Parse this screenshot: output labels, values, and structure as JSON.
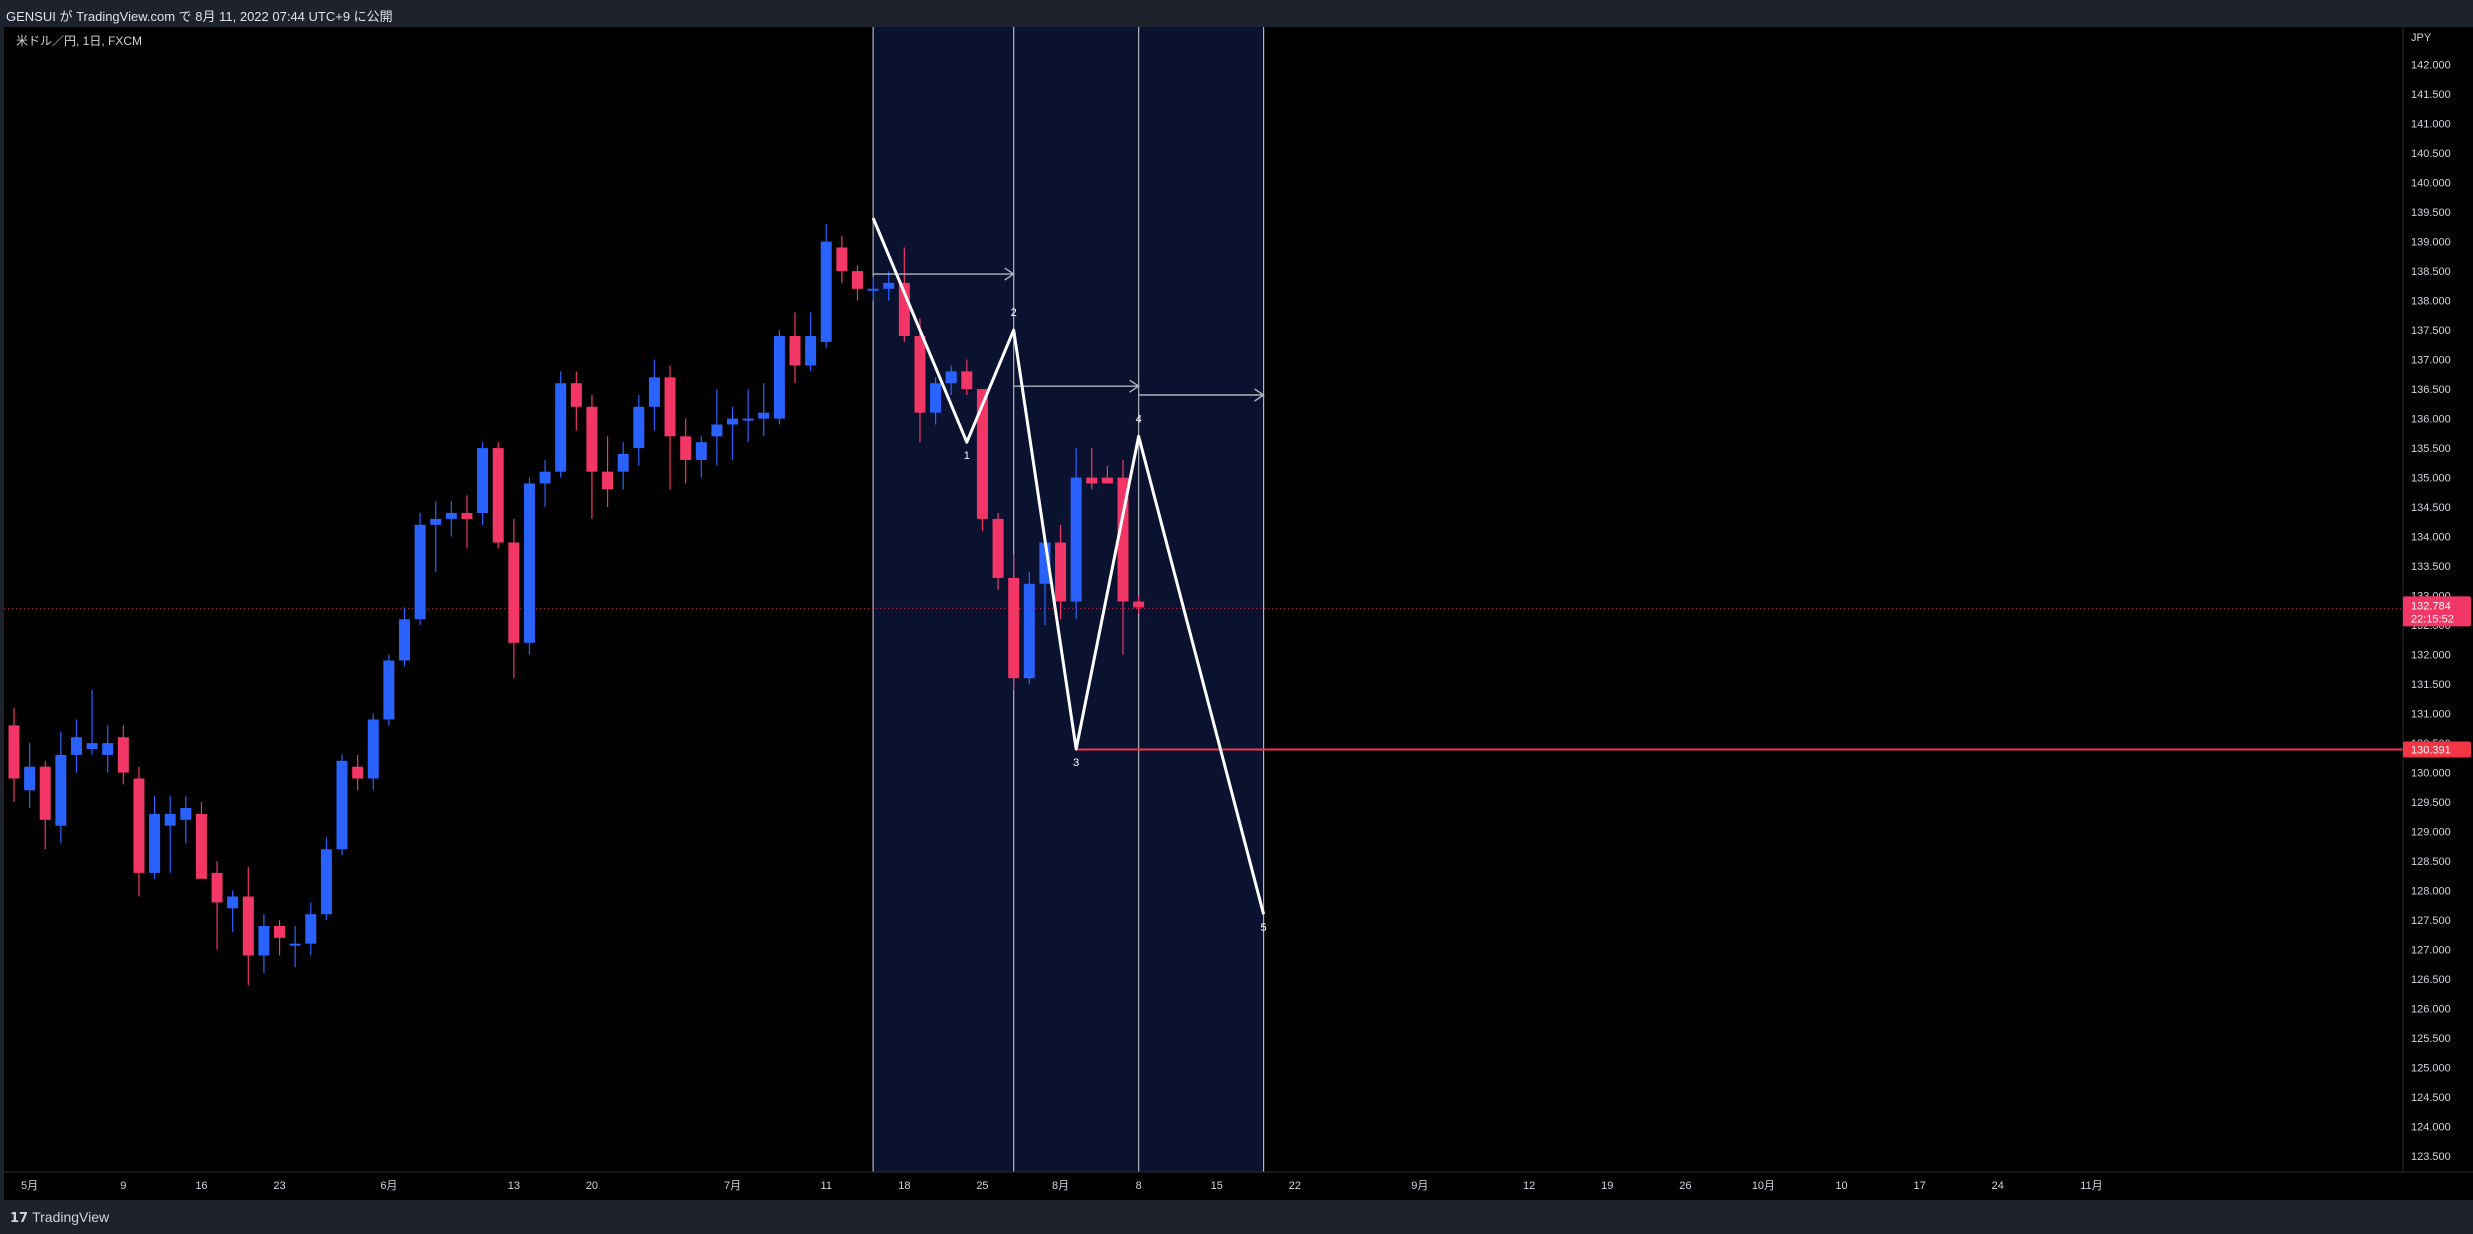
{
  "header": {
    "publish_text": "GENSUI が TradingView.com で 8月 11, 2022 07:44 UTC+9 に公開"
  },
  "footer": {
    "brand": "TradingView",
    "logo_glyph": "17"
  },
  "chart_data": {
    "type": "candlestick",
    "title": "米ドル／円, 1日, FXCM",
    "currency": "JPY",
    "ylim": [
      123.5,
      142.4
    ],
    "y_ticks": [
      "142.000",
      "141.500",
      "141.000",
      "140.500",
      "140.000",
      "139.500",
      "139.000",
      "138.500",
      "138.000",
      "137.500",
      "137.000",
      "136.500",
      "136.000",
      "135.500",
      "135.000",
      "134.500",
      "134.000",
      "133.500",
      "133.000",
      "132.500",
      "132.000",
      "131.500",
      "131.000",
      "130.500",
      "130.000",
      "129.500",
      "129.000",
      "128.500",
      "128.000",
      "127.500",
      "127.000",
      "126.500",
      "126.000",
      "125.500",
      "125.000",
      "124.500",
      "124.000",
      "123.500"
    ],
    "x_ticks": [
      {
        "i": 1,
        "label": "5月"
      },
      {
        "i": 7,
        "label": "9"
      },
      {
        "i": 12,
        "label": "16"
      },
      {
        "i": 17,
        "label": "23"
      },
      {
        "i": 24,
        "label": "6月"
      },
      {
        "i": 32,
        "label": "13"
      },
      {
        "i": 37,
        "label": "20"
      },
      {
        "i": 46,
        "label": "7月"
      },
      {
        "i": 52,
        "label": "11"
      },
      {
        "i": 57,
        "label": "18"
      },
      {
        "i": 62,
        "label": "25"
      },
      {
        "i": 67,
        "label": "8月"
      },
      {
        "i": 72,
        "label": "8"
      },
      {
        "i": 77,
        "label": "15"
      },
      {
        "i": 82,
        "label": "22"
      },
      {
        "i": 90,
        "label": "9月"
      },
      {
        "i": 97,
        "label": "12"
      },
      {
        "i": 102,
        "label": "19"
      },
      {
        "i": 107,
        "label": "26"
      },
      {
        "i": 112,
        "label": "10月"
      },
      {
        "i": 117,
        "label": "10"
      },
      {
        "i": 122,
        "label": "17"
      },
      {
        "i": 127,
        "label": "24"
      },
      {
        "i": 133,
        "label": "11月"
      }
    ],
    "up_color": "#2962ff",
    "down_color": "#f23666",
    "candles": [
      {
        "o": 130.8,
        "h": 131.1,
        "l": 129.5,
        "c": 129.9
      },
      {
        "o": 129.7,
        "h": 130.5,
        "l": 129.4,
        "c": 130.1
      },
      {
        "o": 130.1,
        "h": 130.2,
        "l": 128.7,
        "c": 129.2
      },
      {
        "o": 129.1,
        "h": 130.7,
        "l": 128.8,
        "c": 130.3
      },
      {
        "o": 130.3,
        "h": 130.9,
        "l": 130.0,
        "c": 130.6
      },
      {
        "o": 130.4,
        "h": 131.4,
        "l": 130.3,
        "c": 130.5
      },
      {
        "o": 130.3,
        "h": 130.8,
        "l": 130.0,
        "c": 130.5
      },
      {
        "o": 130.6,
        "h": 130.8,
        "l": 129.8,
        "c": 130.0
      },
      {
        "o": 129.9,
        "h": 130.1,
        "l": 127.9,
        "c": 128.3
      },
      {
        "o": 128.3,
        "h": 129.6,
        "l": 128.2,
        "c": 129.3
      },
      {
        "o": 129.1,
        "h": 129.6,
        "l": 128.3,
        "c": 129.3
      },
      {
        "o": 129.2,
        "h": 129.6,
        "l": 128.8,
        "c": 129.4
      },
      {
        "o": 129.3,
        "h": 129.5,
        "l": 128.2,
        "c": 128.2
      },
      {
        "o": 128.3,
        "h": 128.5,
        "l": 127.0,
        "c": 127.8
      },
      {
        "o": 127.7,
        "h": 128.0,
        "l": 127.3,
        "c": 127.9
      },
      {
        "o": 127.9,
        "h": 128.4,
        "l": 126.4,
        "c": 126.9
      },
      {
        "o": 126.9,
        "h": 127.6,
        "l": 126.6,
        "c": 127.4
      },
      {
        "o": 127.4,
        "h": 127.5,
        "l": 126.9,
        "c": 127.2
      },
      {
        "o": 127.1,
        "h": 127.4,
        "l": 126.7,
        "c": 127.1
      },
      {
        "o": 127.1,
        "h": 127.8,
        "l": 126.9,
        "c": 127.6
      },
      {
        "o": 127.6,
        "h": 128.9,
        "l": 127.5,
        "c": 128.7
      },
      {
        "o": 128.7,
        "h": 130.3,
        "l": 128.6,
        "c": 130.2
      },
      {
        "o": 130.1,
        "h": 130.3,
        "l": 129.7,
        "c": 129.9
      },
      {
        "o": 129.9,
        "h": 131.0,
        "l": 129.7,
        "c": 130.9
      },
      {
        "o": 130.9,
        "h": 132.0,
        "l": 130.8,
        "c": 131.9
      },
      {
        "o": 131.9,
        "h": 132.8,
        "l": 131.8,
        "c": 132.6
      },
      {
        "o": 132.6,
        "h": 134.4,
        "l": 132.5,
        "c": 134.2
      },
      {
        "o": 134.2,
        "h": 134.6,
        "l": 133.4,
        "c": 134.3
      },
      {
        "o": 134.3,
        "h": 134.6,
        "l": 134.0,
        "c": 134.4
      },
      {
        "o": 134.4,
        "h": 134.7,
        "l": 133.8,
        "c": 134.3
      },
      {
        "o": 134.4,
        "h": 135.6,
        "l": 134.2,
        "c": 135.5
      },
      {
        "o": 135.5,
        "h": 135.6,
        "l": 133.8,
        "c": 133.9
      },
      {
        "o": 133.9,
        "h": 134.3,
        "l": 131.6,
        "c": 132.2
      },
      {
        "o": 132.2,
        "h": 135.0,
        "l": 132.0,
        "c": 134.9
      },
      {
        "o": 134.9,
        "h": 135.3,
        "l": 134.5,
        "c": 135.1
      },
      {
        "o": 135.1,
        "h": 136.8,
        "l": 135.0,
        "c": 136.6
      },
      {
        "o": 136.6,
        "h": 136.8,
        "l": 135.8,
        "c": 136.2
      },
      {
        "o": 136.2,
        "h": 136.4,
        "l": 134.3,
        "c": 135.1
      },
      {
        "o": 135.1,
        "h": 135.7,
        "l": 134.5,
        "c": 134.8
      },
      {
        "o": 135.1,
        "h": 135.6,
        "l": 134.8,
        "c": 135.4
      },
      {
        "o": 135.5,
        "h": 136.4,
        "l": 135.2,
        "c": 136.2
      },
      {
        "o": 136.2,
        "h": 137.0,
        "l": 135.8,
        "c": 136.7
      },
      {
        "o": 136.7,
        "h": 136.9,
        "l": 134.8,
        "c": 135.7
      },
      {
        "o": 135.7,
        "h": 136.0,
        "l": 134.9,
        "c": 135.3
      },
      {
        "o": 135.3,
        "h": 135.7,
        "l": 135.0,
        "c": 135.6
      },
      {
        "o": 135.7,
        "h": 136.5,
        "l": 135.2,
        "c": 135.9
      },
      {
        "o": 135.9,
        "h": 136.2,
        "l": 135.3,
        "c": 136.0
      },
      {
        "o": 136.0,
        "h": 136.5,
        "l": 135.6,
        "c": 136.0
      },
      {
        "o": 136.0,
        "h": 136.6,
        "l": 135.7,
        "c": 136.1
      },
      {
        "o": 136.0,
        "h": 137.5,
        "l": 135.9,
        "c": 137.4
      },
      {
        "o": 137.4,
        "h": 137.8,
        "l": 136.6,
        "c": 136.9
      },
      {
        "o": 136.9,
        "h": 137.8,
        "l": 136.8,
        "c": 137.4
      },
      {
        "o": 137.3,
        "h": 139.3,
        "l": 137.2,
        "c": 139.0
      },
      {
        "o": 138.9,
        "h": 139.1,
        "l": 138.3,
        "c": 138.5
      },
      {
        "o": 138.5,
        "h": 138.6,
        "l": 138.0,
        "c": 138.2
      },
      {
        "o": 138.2,
        "h": 138.4,
        "l": 138.0,
        "c": 138.2
      },
      {
        "o": 138.2,
        "h": 138.5,
        "l": 138.0,
        "c": 138.3
      },
      {
        "o": 138.3,
        "h": 138.9,
        "l": 137.3,
        "c": 137.4
      },
      {
        "o": 137.4,
        "h": 137.7,
        "l": 135.6,
        "c": 136.1
      },
      {
        "o": 136.1,
        "h": 136.7,
        "l": 135.9,
        "c": 136.6
      },
      {
        "o": 136.6,
        "h": 136.9,
        "l": 136.4,
        "c": 136.8
      },
      {
        "o": 136.8,
        "h": 137.0,
        "l": 136.4,
        "c": 136.5
      },
      {
        "o": 136.5,
        "h": 136.5,
        "l": 134.1,
        "c": 134.3
      },
      {
        "o": 134.3,
        "h": 134.4,
        "l": 133.1,
        "c": 133.3
      },
      {
        "o": 133.3,
        "h": 133.7,
        "l": 131.4,
        "c": 131.6
      },
      {
        "o": 131.6,
        "h": 133.4,
        "l": 131.5,
        "c": 133.2
      },
      {
        "o": 133.2,
        "h": 133.9,
        "l": 132.5,
        "c": 133.9
      },
      {
        "o": 133.9,
        "h": 134.2,
        "l": 132.6,
        "c": 132.9
      },
      {
        "o": 132.9,
        "h": 135.5,
        "l": 132.6,
        "c": 135.0
      },
      {
        "o": 135.0,
        "h": 135.5,
        "l": 134.8,
        "c": 134.9
      },
      {
        "o": 135.0,
        "h": 135.2,
        "l": 134.9,
        "c": 134.9
      },
      {
        "o": 135.0,
        "h": 135.3,
        "l": 132.0,
        "c": 132.9
      },
      {
        "o": 132.9,
        "h": 133.0,
        "l": 132.7,
        "c": 132.8
      }
    ],
    "vertical_lines": [
      55,
      64,
      72,
      80
    ],
    "shade_range": [
      55,
      80
    ],
    "pattern": [
      {
        "i": 55,
        "p": 139.4,
        "label": ""
      },
      {
        "i": 61,
        "p": 135.6,
        "label": "1"
      },
      {
        "i": 64,
        "p": 137.5,
        "label": "2"
      },
      {
        "i": 68,
        "p": 130.4,
        "label": "3"
      },
      {
        "i": 72,
        "p": 135.7,
        "label": "4"
      },
      {
        "i": 80,
        "p": 127.6,
        "label": "5"
      }
    ],
    "arrows": [
      {
        "from": 55,
        "to": 64,
        "p": 138.45
      },
      {
        "from": 64,
        "to": 72,
        "p": 136.55
      },
      {
        "from": 72,
        "to": 80,
        "p": 136.4
      }
    ],
    "support": {
      "price": 130.391,
      "from": 68,
      "label": "130.391",
      "color": "#f23645"
    },
    "last": {
      "price": 132.784,
      "label": "132.784",
      "countdown": "22:15:52",
      "color": "#f23666"
    }
  }
}
